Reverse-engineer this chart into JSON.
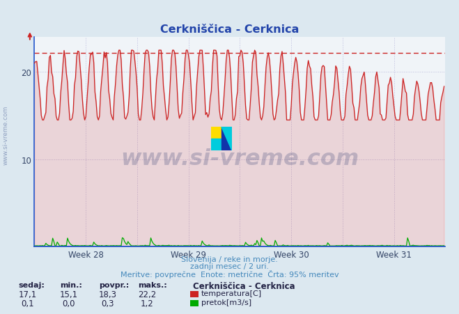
{
  "title": "Cerkniščica - Cerknica",
  "title_color": "#2244aa",
  "bg_color": "#dce8f0",
  "plot_bg_color": "#f0f4f8",
  "grid_color": "#bbbbdd",
  "grid_style": "dotted",
  "x_weeks": [
    "Week 28",
    "Week 29",
    "Week 30",
    "Week 31"
  ],
  "ylim_min": 0,
  "ylim_max": 24,
  "yticks": [
    10,
    20
  ],
  "temp_color": "#cc2222",
  "flow_color": "#00aa00",
  "blue_axis_color": "#2255cc",
  "dashed_line_value": 22.2,
  "dashed_line_color": "#cc2222",
  "temp_min": 15.1,
  "temp_max": 22.2,
  "temp_avg": 18.3,
  "temp_current": 17.1,
  "flow_min": 0.0,
  "flow_max": 1.2,
  "flow_avg": 0.3,
  "flow_current": 0.1,
  "footer_line1": "Slovenija / reke in morje.",
  "footer_line2": "zadnji mesec / 2 uri.",
  "footer_line3": "Meritve: povprečne  Enote: metrične  Črta: 95% meritev",
  "footer_color": "#4488bb",
  "label_sedaj": "sedaj:",
  "label_min": "min.:",
  "label_povpr": "povpr.:",
  "label_maks": "maks.:",
  "station_label": "Cerkniščica - Cerknica",
  "legend_temp": "temperatura[C]",
  "legend_flow": "pretok[m3/s]",
  "watermark": "www.si-vreme.com",
  "n_points": 360,
  "weeks_count": 4
}
